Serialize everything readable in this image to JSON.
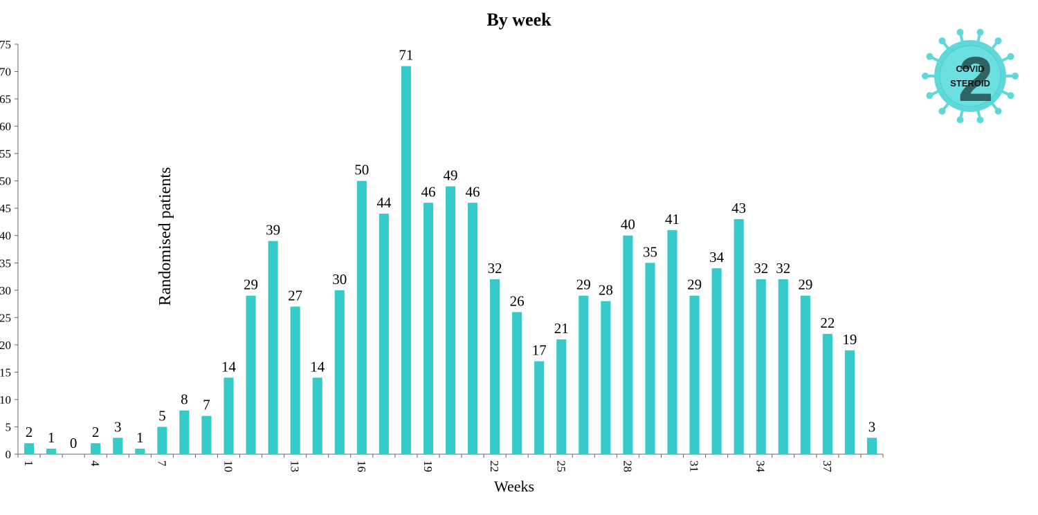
{
  "chart_data": {
    "type": "bar",
    "title": "By week",
    "xlabel": "Weeks",
    "ylabel": "Randomised patients",
    "ylim": [
      0,
      75
    ],
    "y_ticks": [
      0,
      5,
      10,
      15,
      20,
      25,
      30,
      35,
      40,
      45,
      50,
      55,
      60,
      65,
      70,
      75
    ],
    "y_tick_labels": [
      "0",
      "5",
      "10",
      "15",
      "20",
      "25",
      "30",
      "35",
      "40",
      "45",
      "50",
      "55",
      "60",
      "65",
      "70",
      "75"
    ],
    "categories": [
      1,
      2,
      3,
      4,
      5,
      6,
      7,
      8,
      9,
      10,
      11,
      12,
      13,
      14,
      15,
      16,
      17,
      18,
      19,
      20,
      21,
      22,
      23,
      24,
      25,
      26,
      27,
      28,
      29,
      30,
      31,
      32,
      33,
      34,
      35,
      36,
      37,
      38,
      39
    ],
    "x_tick_labels": [
      "1",
      "4",
      "7",
      "10",
      "13",
      "16",
      "19",
      "22",
      "25",
      "28",
      "31",
      "34",
      "37"
    ],
    "values": [
      2,
      1,
      0,
      2,
      3,
      1,
      5,
      8,
      7,
      14,
      29,
      39,
      27,
      14,
      30,
      50,
      44,
      71,
      46,
      49,
      46,
      32,
      26,
      17,
      21,
      29,
      28,
      40,
      35,
      41,
      29,
      34,
      43,
      32,
      32,
      29,
      22,
      19,
      3
    ],
    "data_labels": [
      "2",
      "1",
      "0",
      "2",
      "3",
      "1",
      "5",
      "8",
      "7",
      "14",
      "29",
      "39",
      "27",
      "14",
      "30",
      "50",
      "44",
      "71",
      "46",
      "49",
      "46",
      "32",
      "26",
      "17",
      "21",
      "29",
      "28",
      "40",
      "35",
      "41",
      "29",
      "34",
      "43",
      "32",
      "32",
      "29",
      "22",
      "19",
      "3"
    ],
    "grid": false,
    "legend": "none",
    "bar_color": "#36CACA"
  },
  "logo": {
    "line1": "COVID",
    "line2": "STEROID",
    "numeral": "2",
    "color": "#5ED8D8",
    "dark_color": "#2AA9AD"
  }
}
